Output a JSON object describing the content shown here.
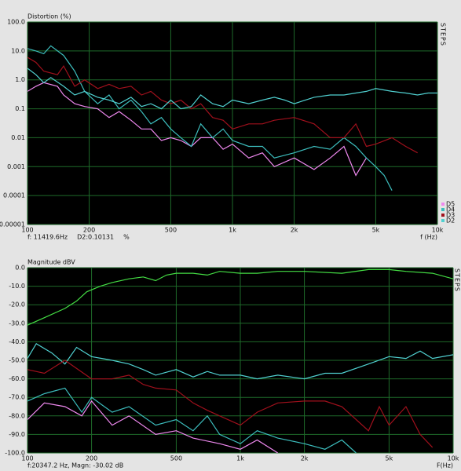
{
  "chart_data": [
    {
      "type": "line",
      "title": "Distortion (%)",
      "x_label": "f (Hz)",
      "side_label": "STEPS",
      "cursor": [
        "f: 11419.6Hz",
        "D2:0.10131",
        "%"
      ],
      "xlog": true,
      "ylog": true,
      "grid": true,
      "legend": "lower-right",
      "xlim": [
        100,
        10000
      ],
      "ylim": [
        1e-05,
        100
      ],
      "xticks": [
        100,
        200,
        500,
        {
          "value": 1000,
          "label": "1k"
        },
        {
          "value": 2000,
          "label": "2k"
        },
        {
          "value": 5000,
          "label": "5k"
        },
        {
          "value": 10000,
          "label": "10k"
        }
      ],
      "yticks": [
        {
          "value": 100,
          "label": "100.0"
        },
        {
          "value": 10,
          "label": "10.0"
        },
        {
          "value": 1,
          "label": "1.0"
        },
        0.1,
        0.01,
        0.001,
        0.0001,
        1e-05
      ],
      "series": [
        {
          "name": "D5",
          "color": "#ee88ee",
          "x": [
            100,
            110,
            120,
            140,
            150,
            170,
            190,
            220,
            250,
            280,
            320,
            360,
            400,
            450,
            500,
            560,
            630,
            700,
            800,
            900,
            1000,
            1200,
            1400,
            1600,
            2000,
            2500,
            3000,
            3500,
            4000,
            4500
          ],
          "values": [
            0.4,
            0.6,
            0.8,
            0.6,
            0.3,
            0.15,
            0.12,
            0.1,
            0.05,
            0.08,
            0.04,
            0.02,
            0.02,
            0.008,
            0.01,
            0.008,
            0.005,
            0.01,
            0.01,
            0.004,
            0.006,
            0.002,
            0.003,
            0.001,
            0.002,
            0.0008,
            0.002,
            0.005,
            0.0005,
            0.002
          ]
        },
        {
          "name": "D4",
          "color": "#3cbcbc",
          "x": [
            100,
            110,
            120,
            130,
            150,
            170,
            190,
            220,
            250,
            280,
            320,
            360,
            400,
            450,
            500,
            560,
            630,
            700,
            800,
            900,
            1000,
            1200,
            1400,
            1600,
            2000,
            2500,
            3000,
            3500,
            4000,
            4500,
            5000,
            5500,
            6000
          ],
          "values": [
            12,
            10,
            8,
            15,
            7,
            2,
            0.4,
            0.15,
            0.3,
            0.1,
            0.2,
            0.08,
            0.03,
            0.05,
            0.02,
            0.01,
            0.005,
            0.03,
            0.01,
            0.02,
            0.008,
            0.005,
            0.005,
            0.002,
            0.003,
            0.005,
            0.004,
            0.01,
            0.005,
            0.002,
            0.001,
            0.0005,
            0.00015
          ]
        },
        {
          "name": "D3",
          "color": "#a0101c",
          "x": [
            100,
            110,
            120,
            140,
            150,
            170,
            190,
            220,
            250,
            280,
            320,
            360,
            400,
            450,
            500,
            560,
            630,
            700,
            800,
            900,
            1000,
            1200,
            1400,
            1600,
            2000,
            2500,
            3000,
            3500,
            4000,
            4500,
            5000,
            6000,
            7000,
            8000
          ],
          "values": [
            6,
            4,
            2,
            1.5,
            3,
            0.6,
            1,
            0.5,
            0.7,
            0.5,
            0.6,
            0.3,
            0.4,
            0.2,
            0.15,
            0.2,
            0.1,
            0.15,
            0.05,
            0.04,
            0.02,
            0.03,
            0.03,
            0.04,
            0.05,
            0.03,
            0.01,
            0.01,
            0.03,
            0.005,
            0.006,
            0.01,
            0.005,
            0.003
          ]
        },
        {
          "name": "D2",
          "color": "#50d0d0",
          "x": [
            100,
            110,
            120,
            130,
            150,
            170,
            190,
            220,
            250,
            280,
            320,
            360,
            400,
            450,
            500,
            560,
            630,
            700,
            800,
            900,
            1000,
            1200,
            1400,
            1600,
            1800,
            2000,
            2500,
            3000,
            3500,
            4000,
            4500,
            5000,
            6000,
            7000,
            8000,
            9000,
            10000
          ],
          "values": [
            2.5,
            1.5,
            0.8,
            1.2,
            0.6,
            0.3,
            0.4,
            0.25,
            0.2,
            0.15,
            0.25,
            0.12,
            0.15,
            0.1,
            0.2,
            0.1,
            0.12,
            0.3,
            0.15,
            0.12,
            0.2,
            0.15,
            0.2,
            0.25,
            0.2,
            0.15,
            0.25,
            0.3,
            0.3,
            0.35,
            0.4,
            0.5,
            0.4,
            0.35,
            0.3,
            0.35,
            0.35
          ]
        }
      ]
    },
    {
      "type": "line",
      "title": "Magnitude dBV",
      "x_label": "F(Hz)",
      "side_label": "STEPS",
      "cursor": [
        "f:20347.2 Hz, Magn: -30.02 dB"
      ],
      "xlog": true,
      "ylog": false,
      "grid": true,
      "xlim": [
        100,
        10000
      ],
      "ylim": [
        -100,
        0
      ],
      "xticks": [
        100,
        200,
        500,
        {
          "value": 1000,
          "label": "1k"
        },
        {
          "value": 2000,
          "label": "2k"
        },
        {
          "value": 5000,
          "label": "5k"
        },
        {
          "value": 10000,
          "label": "10k"
        }
      ],
      "yticks": [
        {
          "value": 0,
          "label": "0.0"
        },
        {
          "value": -10,
          "label": "-10.0"
        },
        {
          "value": -20,
          "label": "-20.0"
        },
        {
          "value": -30,
          "label": "-30.0"
        },
        {
          "value": -40,
          "label": "-40.0"
        },
        {
          "value": -50,
          "label": "-50.0"
        },
        {
          "value": -60,
          "label": "-60.0"
        },
        {
          "value": -70,
          "label": "-70.0"
        },
        {
          "value": -80,
          "label": "-80.0"
        },
        {
          "value": -90,
          "label": "-90.0"
        },
        {
          "value": -100,
          "label": "-100.0"
        }
      ],
      "series": [
        {
          "color": "#44dd44",
          "x": [
            100,
            120,
            150,
            170,
            190,
            220,
            250,
            300,
            350,
            400,
            450,
            500,
            600,
            700,
            800,
            1000,
            1200,
            1500,
            2000,
            3000,
            4000,
            5000,
            6000,
            8000,
            10000
          ],
          "values": [
            -31,
            -27,
            -22,
            -18,
            -13,
            -10,
            -8,
            -6,
            -5,
            -7,
            -4,
            -3,
            -3,
            -4,
            -2,
            -3,
            -3,
            -2,
            -2,
            -3,
            -1,
            -1,
            -2,
            -3,
            -6
          ]
        },
        {
          "color": "#50d0d0",
          "x": [
            100,
            110,
            130,
            150,
            170,
            200,
            250,
            300,
            350,
            400,
            500,
            600,
            700,
            800,
            1000,
            1200,
            1500,
            2000,
            2500,
            3000,
            4000,
            5000,
            6000,
            7000,
            8000,
            10000
          ],
          "values": [
            -49,
            -41,
            -46,
            -52,
            -43,
            -48,
            -50,
            -52,
            -55,
            -58,
            -55,
            -59,
            -56,
            -58,
            -58,
            -60,
            -58,
            -60,
            -57,
            -57,
            -52,
            -48,
            -49,
            -45,
            -49,
            -47
          ]
        },
        {
          "color": "#a0101c",
          "x": [
            100,
            120,
            150,
            200,
            250,
            300,
            350,
            400,
            500,
            600,
            700,
            800,
            1000,
            1200,
            1500,
            2000,
            2500,
            3000,
            4000,
            4500,
            5000,
            6000,
            7000,
            8000
          ],
          "values": [
            -55,
            -57,
            -50,
            -60,
            -60,
            -58,
            -63,
            -65,
            -66,
            -73,
            -77,
            -80,
            -85,
            -78,
            -73,
            -72,
            -72,
            -75,
            -88,
            -75,
            -85,
            -75,
            -90,
            -97
          ]
        },
        {
          "color": "#3cbcbc",
          "x": [
            100,
            120,
            150,
            180,
            200,
            250,
            300,
            400,
            500,
            600,
            700,
            800,
            1000,
            1200,
            1500,
            2000,
            2500,
            3000,
            3500
          ],
          "values": [
            -72,
            -68,
            -65,
            -78,
            -70,
            -78,
            -75,
            -85,
            -82,
            -88,
            -80,
            -90,
            -95,
            -88,
            -92,
            -95,
            -98,
            -93,
            -100
          ]
        },
        {
          "color": "#ee88ee",
          "x": [
            100,
            120,
            150,
            180,
            200,
            250,
            300,
            400,
            500,
            600,
            800,
            1000,
            1200,
            1500
          ],
          "values": [
            -82,
            -73,
            -75,
            -80,
            -72,
            -85,
            -80,
            -90,
            -88,
            -92,
            -95,
            -98,
            -93,
            -100
          ]
        }
      ]
    }
  ]
}
